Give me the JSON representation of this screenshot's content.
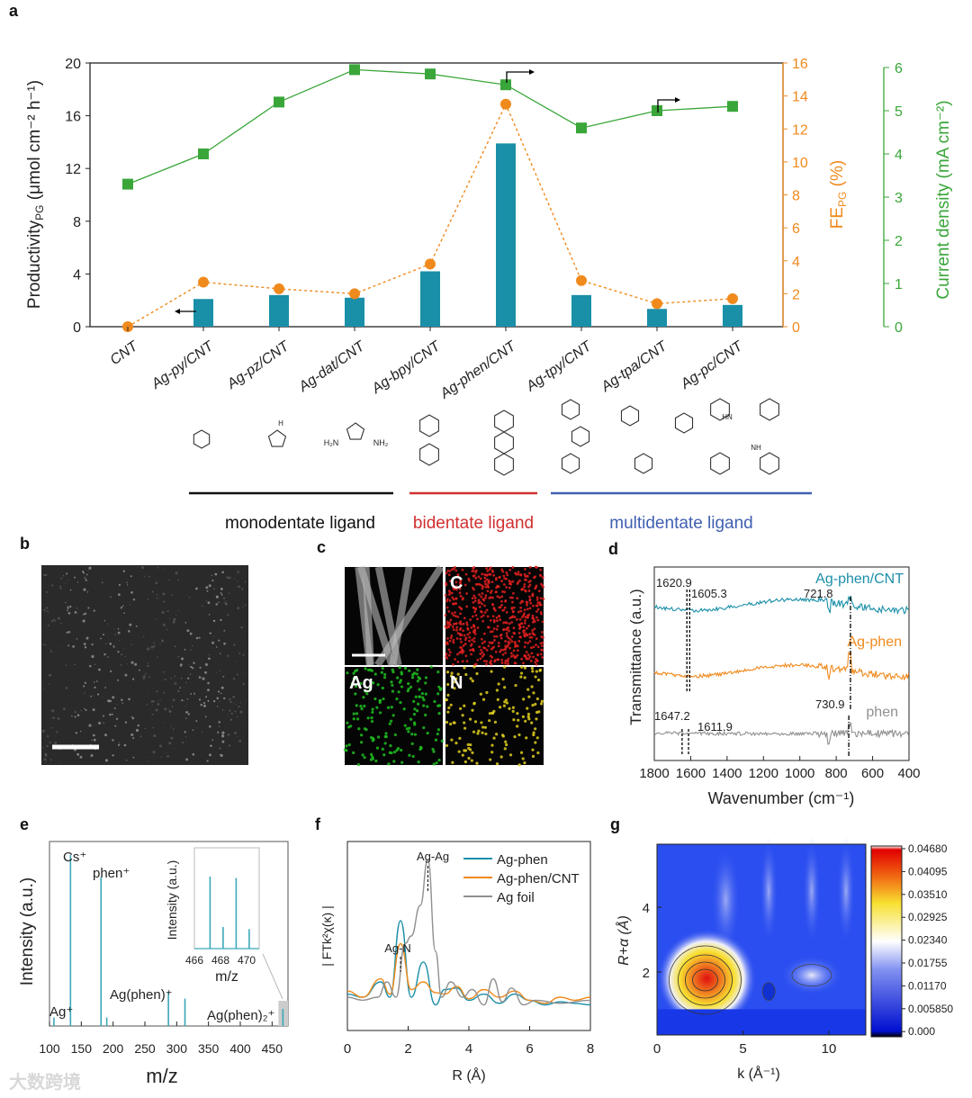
{
  "panel_labels": {
    "a": "a",
    "b": "b",
    "c": "c",
    "d": "d",
    "e": "e",
    "f": "f",
    "g": "g"
  },
  "watermark": "大数跨境",
  "chart_data": [
    {
      "panel": "a",
      "type": "bar",
      "categories": [
        "CNT",
        "Ag-py/CNT",
        "Ag-pz/CNT",
        "Ag-dat/CNT",
        "Ag-bpy/CNT",
        "Ag-phen/CNT",
        "Ag-tpy/CNT",
        "Ag-tpa/CNT",
        "Ag-pc/CNT"
      ],
      "ylabel": "Productivity",
      "ylabel_sub": "PG",
      "ylabel_units": " (μmol cm⁻² h⁻¹)",
      "ylim": [
        0,
        20
      ],
      "yticks": [
        "0",
        "4",
        "8",
        "12",
        "16",
        "20"
      ],
      "series": [
        {
          "name": "Productivity PG",
          "type": "bar",
          "axis": "left",
          "color": "#1a8fa8",
          "values": [
            0,
            2.1,
            2.4,
            2.2,
            4.2,
            13.9,
            2.4,
            1.35,
            1.65
          ]
        },
        {
          "name": "FE PG",
          "type": "line-dashed",
          "axis": "right1",
          "color": "#f08a1c",
          "values": [
            0,
            2.7,
            2.3,
            2.0,
            3.8,
            13.5,
            2.8,
            1.4,
            1.7
          ]
        },
        {
          "name": "Current density",
          "type": "line",
          "axis": "right2",
          "color": "#3aa63a",
          "values": [
            3.3,
            4.0,
            5.2,
            5.95,
            5.85,
            5.6,
            4.6,
            5.0,
            5.1
          ]
        }
      ],
      "right1": {
        "label": "FE",
        "label_sub": "PG",
        "label_units": " (%)",
        "ylim": [
          0,
          16
        ],
        "yticks": [
          "0",
          "2",
          "4",
          "6",
          "8",
          "10",
          "12",
          "14",
          "16"
        ]
      },
      "right2": {
        "label": "Current density (mA cm⁻²)",
        "ylim": [
          0,
          6
        ],
        "yticks": [
          "0",
          "1",
          "2",
          "3",
          "4",
          "5",
          "6"
        ]
      },
      "ligand_groups": [
        {
          "label": "monodentate ligand",
          "color": "#111111"
        },
        {
          "label": "bidentate ligand",
          "color": "#d03030"
        },
        {
          "label": "multidentate ligand",
          "color": "#4060b0"
        }
      ],
      "structure_labels": {
        "dat_left": "H₂N",
        "dat_right": "NH₂",
        "pz_nh": "H",
        "nh": "NH",
        "hn": "HN"
      }
    },
    {
      "panel": "c",
      "type": "table",
      "tiles": [
        "",
        "C",
        "Ag",
        "N"
      ]
    },
    {
      "panel": "d",
      "type": "line",
      "xlabel": "Wavenumber (cm⁻¹)",
      "ylabel": "Transmittance (a.u.)",
      "xlim": [
        1800,
        400
      ],
      "xticks": [
        "1800",
        "1600",
        "1400",
        "1200",
        "1000",
        "800",
        "600",
        "400"
      ],
      "series": [
        {
          "name": "Ag-phen/CNT",
          "color": "#1a8fa8"
        },
        {
          "name": "Ag-phen",
          "color": "#f08a1c"
        },
        {
          "name": "phen",
          "color": "#909090"
        }
      ],
      "annotations": [
        "1620.9",
        "1605.3",
        "721.8",
        "1647.2",
        "1611.9",
        "730.9"
      ]
    },
    {
      "panel": "e",
      "type": "bar",
      "xlabel": "m/z",
      "ylabel": "Intensity (a.u.)",
      "xlim": [
        100,
        475
      ],
      "xticks": [
        "100",
        "150",
        "200",
        "250",
        "300",
        "350",
        "400",
        "450"
      ],
      "peaks_mz": [
        107,
        133,
        181,
        190,
        287,
        313,
        467
      ],
      "peaks_rel": [
        0.05,
        1.0,
        0.87,
        0.05,
        0.2,
        0.16,
        0.1
      ],
      "peak_labels": [
        "Ag⁺",
        "Cs⁺",
        "phen⁺",
        "Ag(phen)⁺",
        "Ag(phen)₂⁺"
      ],
      "inset": {
        "xlabel": "m/z",
        "ylabel": "Intensity (a.u.)",
        "xticks": [
          "466",
          "468",
          "470"
        ],
        "peaks_mz": [
          467.2,
          468.2,
          469.2,
          470.2
        ],
        "peaks_rel": [
          1.0,
          0.3,
          0.98,
          0.27
        ]
      }
    },
    {
      "panel": "f",
      "type": "line",
      "xlabel": "R (Å)",
      "ylabel": "| FTk²χ(κ) |",
      "xlim": [
        0,
        8
      ],
      "xticks": [
        "0",
        "2",
        "4",
        "6",
        "8"
      ],
      "series": [
        {
          "name": "Ag-phen",
          "color": "#1a8fa8",
          "x": [
            0,
            0.5,
            1.1,
            1.4,
            1.75,
            2.1,
            2.5,
            2.9,
            3.2,
            3.6,
            4.0,
            4.5,
            5.0,
            5.5,
            6.0,
            6.5,
            7.0,
            7.5,
            8.0
          ],
          "y": [
            0.12,
            0.1,
            0.2,
            0.1,
            0.6,
            0.1,
            0.33,
            0.05,
            0.15,
            0.16,
            0.08,
            0.12,
            0.06,
            0.12,
            0.08,
            0.05,
            0.07,
            0.06,
            0.05
          ]
        },
        {
          "name": "Ag-phen/CNT",
          "color": "#f08a1c",
          "x": [
            0,
            0.5,
            1.1,
            1.4,
            1.75,
            2.1,
            2.5,
            2.9,
            3.2,
            3.6,
            4.0,
            4.5,
            5.0,
            5.5,
            6.0,
            6.5,
            7.0,
            7.5,
            8.0
          ],
          "y": [
            0.14,
            0.1,
            0.22,
            0.12,
            0.45,
            0.15,
            0.2,
            0.13,
            0.12,
            0.17,
            0.09,
            0.15,
            0.1,
            0.14,
            0.08,
            0.06,
            0.1,
            0.08,
            0.1
          ]
        },
        {
          "name": "Ag foil",
          "color": "#909090",
          "x": [
            0,
            0.5,
            1.0,
            1.3,
            1.6,
            1.9,
            2.1,
            2.4,
            2.65,
            2.9,
            3.1,
            3.4,
            3.8,
            4.1,
            4.5,
            4.8,
            5.1,
            5.4,
            5.8,
            6.2,
            7,
            8
          ],
          "y": [
            0.1,
            0.08,
            0.1,
            0.2,
            0.1,
            0.45,
            0.5,
            0.7,
            1.0,
            0.4,
            0.1,
            0.2,
            0.1,
            0.15,
            0.05,
            0.22,
            0.07,
            0.16,
            0.05,
            0.08,
            0.06,
            0.08
          ]
        }
      ],
      "annotations": [
        "Ag-Ag",
        "Ag-N"
      ]
    },
    {
      "panel": "g",
      "type": "heatmap",
      "xlabel": "k (Å⁻¹)",
      "ylabel": "R+α (Å)",
      "xticks": [
        "0",
        "5",
        "10"
      ],
      "yticks": [
        "2",
        "4"
      ],
      "colorbar_ticks": [
        "0.04680",
        "0.04095",
        "0.03510",
        "0.02925",
        "0.02340",
        "0.01755",
        "0.01170",
        "0.005850",
        "0.000"
      ],
      "max_at": {
        "k": 2.7,
        "R": 1.6
      }
    }
  ]
}
